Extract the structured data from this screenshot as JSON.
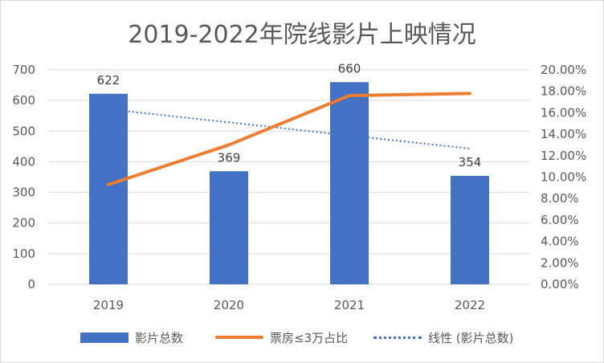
{
  "chart_data": {
    "type": "bar",
    "title": "2019-2022年院线影片上映情况",
    "categories": [
      "2019",
      "2020",
      "2021",
      "2022"
    ],
    "series": [
      {
        "name": "影片总数",
        "type": "bar",
        "axis": "left",
        "values": [
          622,
          369,
          660,
          354
        ],
        "color": "#4472C4"
      },
      {
        "name": "票房≤3万占比",
        "type": "line",
        "axis": "right",
        "values": [
          0.093,
          0.13,
          0.176,
          0.178
        ],
        "color": "#ED7D31"
      },
      {
        "name": "线性 (影片总数)",
        "type": "trendline",
        "axis": "left",
        "values": [
          571.4,
          528.6,
          485.8,
          443.0
        ],
        "color": "#4472C4"
      }
    ],
    "data_labels": [
      "622",
      "369",
      "660",
      "354"
    ],
    "y_left": {
      "min": 0,
      "max": 700,
      "step": 100,
      "ticks": [
        "0",
        "100",
        "200",
        "300",
        "400",
        "500",
        "600",
        "700"
      ]
    },
    "y_right": {
      "min": 0,
      "max": 0.2,
      "step": 0.02,
      "ticks": [
        "0.00%",
        "2.00%",
        "4.00%",
        "6.00%",
        "8.00%",
        "10.00%",
        "12.00%",
        "14.00%",
        "16.00%",
        "18.00%",
        "20.00%"
      ]
    },
    "grid": true,
    "legend_position": "bottom"
  }
}
